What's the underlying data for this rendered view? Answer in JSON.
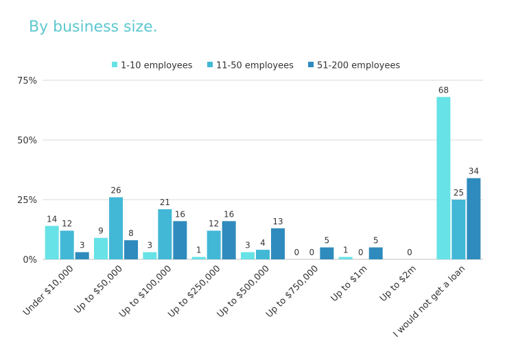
{
  "title": "By business size.",
  "colors": {
    "title": "#5cc8cf",
    "grid": "#d9d9d9"
  },
  "chart_data": {
    "type": "bar",
    "title": "By business size.",
    "categories": [
      "Under $10,000",
      "Up to $50,000",
      "Up to $100,000",
      "Up to $250,000",
      "Up to $500,000",
      "Up to $750,000",
      "Up to $1m",
      "Up to $2m",
      "I would not get a loan"
    ],
    "series": [
      {
        "name": "1-10 employees",
        "color": "#67e2e6",
        "values": [
          14,
          9,
          3,
          1,
          3,
          0,
          1,
          null,
          68
        ],
        "labels": [
          "14",
          "9",
          "3",
          "1",
          "3",
          "0",
          "1",
          "",
          "68"
        ]
      },
      {
        "name": "11-50 employees",
        "color": "#42b8d6",
        "values": [
          12,
          26,
          21,
          12,
          4,
          0,
          0,
          0,
          25
        ],
        "labels": [
          "12",
          "26",
          "21",
          "12",
          "4",
          "0",
          "0",
          "0",
          "25"
        ]
      },
      {
        "name": "51-200 employees",
        "color": "#2f8bbd",
        "values": [
          3,
          8,
          16,
          16,
          13,
          5,
          5,
          null,
          34
        ],
        "labels": [
          "3",
          "8",
          "16",
          "16",
          "13",
          "5",
          "5",
          "",
          "34"
        ]
      }
    ],
    "yticks": [
      "0%",
      "25%",
      "50%",
      "75%"
    ],
    "ylim": [
      0,
      75
    ],
    "xlabel": "",
    "ylabel": "",
    "legend_position": "top",
    "grid": true
  }
}
